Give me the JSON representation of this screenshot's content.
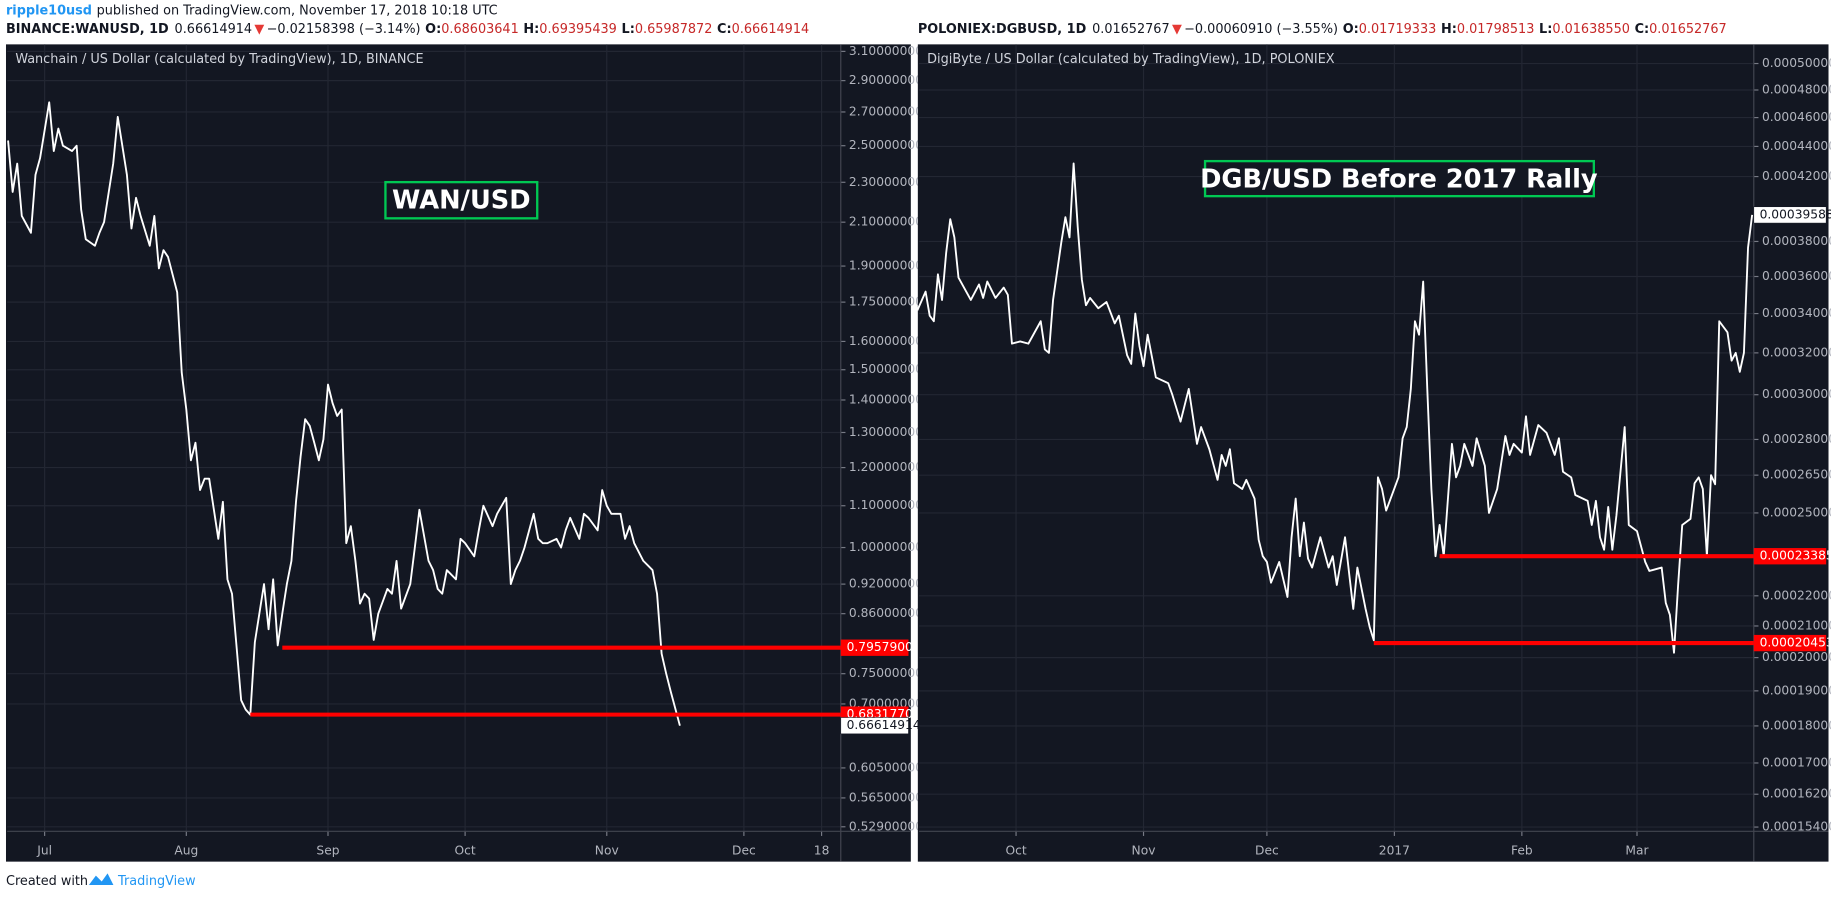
{
  "author": "ripple10usd",
  "published": "published on TradingView.com, November 17, 2018 10:18 UTC",
  "footer": {
    "created": "Created with",
    "brand": "TradingView"
  },
  "chart_data": [
    {
      "type": "line",
      "title": "Wanchain / US Dollar (calculated by TradingView), 1D, BINANCE",
      "annotation": "WAN/USD",
      "header": {
        "symbol": "BINANCE:WANUSD, 1D",
        "price": "0.66614914",
        "arrow": "▼",
        "change": "−0.02158398 (−3.14%)",
        "ohlc": [
          {
            "label": "O:",
            "value": "0.68603641"
          },
          {
            "label": "H:",
            "value": "0.69395439"
          },
          {
            "label": "L:",
            "value": "0.65987872"
          },
          {
            "label": "C:",
            "value": "0.66614914"
          }
        ]
      },
      "log_scale": true,
      "grid": true,
      "color": "#ffffff",
      "xlim": [
        -8.2,
        174.2
      ],
      "xticks": [
        {
          "value": 0,
          "label": "Jul"
        },
        {
          "value": 31,
          "label": "Aug"
        },
        {
          "value": 62,
          "label": "Sep"
        },
        {
          "value": 92,
          "label": "Oct"
        },
        {
          "value": 123,
          "label": "Nov"
        },
        {
          "value": 153,
          "label": "Dec"
        },
        {
          "value": 170,
          "label": "18"
        }
      ],
      "ylim": [
        0.5236,
        3.15
      ],
      "yticks": [
        {
          "value": 3.1,
          "label": "3.10000000"
        },
        {
          "value": 2.9,
          "label": "2.90000000"
        },
        {
          "value": 2.7,
          "label": "2.70000000"
        },
        {
          "value": 2.5,
          "label": "2.50000000"
        },
        {
          "value": 2.3,
          "label": "2.30000000"
        },
        {
          "value": 2.1,
          "label": "2.10000000"
        },
        {
          "value": 1.9,
          "label": "1.90000000"
        },
        {
          "value": 1.75,
          "label": "1.75000000"
        },
        {
          "value": 1.6,
          "label": "1.60000000"
        },
        {
          "value": 1.5,
          "label": "1.50000000"
        },
        {
          "value": 1.4,
          "label": "1.40000000"
        },
        {
          "value": 1.3,
          "label": "1.30000000"
        },
        {
          "value": 1.2,
          "label": "1.20000000"
        },
        {
          "value": 1.1,
          "label": "1.10000000"
        },
        {
          "value": 1.0,
          "label": "1.00000000"
        },
        {
          "value": 0.92,
          "label": "0.92000000"
        },
        {
          "value": 0.86,
          "label": "0.86000000"
        },
        {
          "value": 0.75,
          "label": "0.75000000"
        },
        {
          "value": 0.7,
          "label": "0.70000000"
        },
        {
          "value": 0.605,
          "label": "0.60500000"
        },
        {
          "value": 0.565,
          "label": "0.56500000"
        },
        {
          "value": 0.529,
          "label": "0.52900000"
        }
      ],
      "hlines": [
        {
          "value": 0.79579003,
          "x": 52,
          "color": "#ff0000"
        },
        {
          "value": 0.68317709,
          "x": 45,
          "color": "#ff0000"
        }
      ],
      "x": [
        -8,
        -7,
        -6,
        -5,
        -3,
        -2,
        -1,
        1,
        2,
        3,
        4,
        6,
        7,
        8,
        9,
        11,
        12,
        13,
        15,
        16,
        17,
        18,
        19,
        20,
        21,
        23,
        24,
        25,
        26,
        27,
        29,
        30,
        31,
        32,
        33,
        34,
        35,
        36,
        38,
        39,
        40,
        41,
        43,
        44,
        45,
        46,
        48,
        49,
        50,
        51,
        52,
        53,
        54,
        55,
        56,
        57,
        58,
        59,
        60,
        61,
        62,
        63,
        64,
        65,
        66,
        67,
        68,
        69,
        70,
        71,
        72,
        73,
        75,
        76,
        77,
        78,
        80,
        81,
        82,
        84,
        85,
        86,
        87,
        88,
        90,
        91,
        92,
        94,
        95,
        96,
        98,
        99,
        101,
        102,
        103,
        104,
        105,
        107,
        108,
        109,
        110,
        112,
        113,
        114,
        115,
        117,
        118,
        119,
        121,
        122,
        123,
        124,
        126,
        127,
        128,
        129,
        131,
        132,
        133,
        134,
        135,
        136,
        137,
        139
      ],
      "values": [
        2.53,
        2.25,
        2.4,
        2.13,
        2.05,
        2.34,
        2.43,
        2.76,
        2.47,
        2.6,
        2.5,
        2.47,
        2.5,
        2.16,
        2.02,
        1.99,
        2.05,
        2.1,
        2.4,
        2.67,
        2.5,
        2.34,
        2.07,
        2.22,
        2.13,
        1.99,
        2.13,
        1.89,
        1.97,
        1.94,
        1.79,
        1.49,
        1.37,
        1.22,
        1.27,
        1.14,
        1.17,
        1.17,
        1.02,
        1.11,
        0.93,
        0.9,
        0.706,
        0.691,
        0.683,
        0.806,
        0.92,
        0.83,
        0.93,
        0.8,
        0.86,
        0.92,
        0.97,
        1.11,
        1.23,
        1.34,
        1.32,
        1.27,
        1.22,
        1.28,
        1.45,
        1.39,
        1.35,
        1.37,
        1.01,
        1.05,
        0.97,
        0.88,
        0.9,
        0.89,
        0.81,
        0.86,
        0.91,
        0.9,
        0.97,
        0.87,
        0.92,
        1.0,
        1.09,
        0.97,
        0.95,
        0.91,
        0.9,
        0.95,
        0.93,
        1.02,
        1.01,
        0.98,
        1.04,
        1.1,
        1.05,
        1.08,
        1.12,
        0.92,
        0.95,
        0.97,
        1.0,
        1.08,
        1.02,
        1.01,
        1.01,
        1.02,
        1.0,
        1.04,
        1.07,
        1.02,
        1.08,
        1.07,
        1.04,
        1.14,
        1.1,
        1.08,
        1.08,
        1.02,
        1.05,
        1.01,
        0.97,
        0.96,
        0.95,
        0.9,
        0.785,
        0.75,
        0.72,
        0.66614914
      ]
    },
    {
      "type": "line",
      "title": "DigiByte / US Dollar (calculated by TradingView), 1D, POLONIEX",
      "annotation": "DGB/USD Before 2017 Rally",
      "header": {
        "symbol": "POLONIEX:DGBUSD, 1D",
        "price": "0.01652767",
        "arrow": "▼",
        "change": "−0.00060910 (−3.55%)",
        "ohlc": [
          {
            "label": "O:",
            "value": "0.01719333"
          },
          {
            "label": "H:",
            "value": "0.01798513"
          },
          {
            "label": "L:",
            "value": "0.01638550"
          },
          {
            "label": "C:",
            "value": "0.01652767"
          }
        ]
      },
      "log_scale": true,
      "grid": true,
      "color": "#ffffff",
      "xlim": [
        -23.6,
        179.4
      ],
      "xticks": [
        {
          "value": 0,
          "label": "Oct"
        },
        {
          "value": 31,
          "label": "Nov"
        },
        {
          "value": 61,
          "label": "Dec"
        },
        {
          "value": 92,
          "label": "2017"
        },
        {
          "value": 123,
          "label": "Feb"
        },
        {
          "value": 151,
          "label": "Mar"
        }
      ],
      "ylim": [
        0.000153,
        0.000515
      ],
      "yticks": [
        {
          "value": 0.0005,
          "label": "0.00050000"
        },
        {
          "value": 0.00048,
          "label": "0.00048000"
        },
        {
          "value": 0.00046,
          "label": "0.00046000"
        },
        {
          "value": 0.00044,
          "label": "0.00044000"
        },
        {
          "value": 0.00042,
          "label": "0.00042000"
        },
        {
          "value": 0.00038,
          "label": "0.00038000"
        },
        {
          "value": 0.00036,
          "label": "0.00036000"
        },
        {
          "value": 0.00034,
          "label": "0.00034000"
        },
        {
          "value": 0.00032,
          "label": "0.00032000"
        },
        {
          "value": 0.0003,
          "label": "0.00030000"
        },
        {
          "value": 0.00028,
          "label": "0.00028000"
        },
        {
          "value": 0.000265,
          "label": "0.00026500"
        },
        {
          "value": 0.00025,
          "label": "0.00025000"
        },
        {
          "value": 0.00022,
          "label": "0.00022000"
        },
        {
          "value": 0.00021,
          "label": "0.00021000"
        },
        {
          "value": 0.0002,
          "label": "0.00020000"
        },
        {
          "value": 0.00019,
          "label": "0.00019000"
        },
        {
          "value": 0.00018,
          "label": "0.00018000"
        },
        {
          "value": 0.00017,
          "label": "0.00017000"
        },
        {
          "value": 0.000162,
          "label": "0.00016200"
        },
        {
          "value": 0.000154,
          "label": "0.00015400"
        }
      ],
      "hlines": [
        {
          "value": 0.00023385,
          "x": 103,
          "color": "#ff0000"
        },
        {
          "value": 0.00020453,
          "x": 87,
          "color": "#ff0000"
        }
      ],
      "x": [
        -24,
        -22,
        -21,
        -20,
        -19,
        -18,
        -17,
        -16,
        -15,
        -14,
        -11,
        -9,
        -8,
        -7,
        -5,
        -3,
        -2,
        -1,
        1,
        3,
        6,
        7,
        8,
        9,
        11,
        12,
        13,
        14,
        15,
        16,
        17,
        18,
        20,
        22,
        24,
        25,
        27,
        28,
        29,
        30,
        31,
        32,
        34,
        37,
        38,
        40,
        42,
        44,
        45,
        47,
        49,
        50,
        51,
        52,
        53,
        55,
        56,
        58,
        59,
        60,
        61,
        62,
        64,
        66,
        67,
        68,
        69,
        70,
        71,
        72,
        74,
        76,
        77,
        78,
        80,
        81,
        82,
        83,
        85,
        86,
        87,
        88,
        89,
        90,
        93,
        94,
        95,
        96,
        97,
        98,
        99,
        100,
        101,
        102,
        103,
        104,
        106,
        107,
        108,
        109,
        111,
        112,
        114,
        115,
        117,
        119,
        120,
        121,
        123,
        124,
        125,
        127,
        129,
        131,
        132,
        133,
        135,
        136,
        139,
        140,
        141,
        142,
        143,
        144,
        145,
        146,
        148,
        149,
        151,
        153,
        154,
        157,
        158,
        159,
        160,
        161,
        162,
        164,
        165,
        166,
        167,
        168,
        169,
        170,
        171,
        173,
        174,
        175,
        176,
        177,
        178,
        179
      ],
      "values": [
        0.0003417,
        0.0003517,
        0.0003389,
        0.000336,
        0.0003612,
        0.0003472,
        0.0003733,
        0.0003933,
        0.0003824,
        0.0003594,
        0.0003472,
        0.0003556,
        0.0003483,
        0.0003572,
        0.0003483,
        0.0003539,
        0.00035,
        0.0003246,
        0.0003257,
        0.0003246,
        0.000336,
        0.0003217,
        0.00032,
        0.0003472,
        0.0003794,
        0.0003945,
        0.0003824,
        0.0004286,
        0.0003885,
        0.0003583,
        0.0003444,
        0.0003483,
        0.0003428,
        0.0003461,
        0.0003349,
        0.0003389,
        0.0003189,
        0.0003146,
        0.00034,
        0.0003234,
        0.0003135,
        0.0003291,
        0.0003081,
        0.0003054,
        0.0003,
        0.0002878,
        0.0003027,
        0.0002781,
        0.0002854,
        0.0002758,
        0.0002631,
        0.0002734,
        0.0002688,
        0.0002758,
        0.0002617,
        0.0002594,
        0.0002631,
        0.0002556,
        0.00023985,
        0.00023385,
        0.0002318,
        0.0002245,
        0.0002318,
        0.0002196,
        0.0002408,
        0.0002556,
        0.00023385,
        0.0002463,
        0.000233,
        0.0002298,
        0.0002408,
        0.0002298,
        0.00023385,
        0.0002237,
        0.0002408,
        0.0002277,
        0.0002156,
        0.0002298,
        0.0002156,
        0.0002096,
        0.0002054,
        0.0002641,
        0.0002594,
        0.0002509,
        0.0002641,
        0.0002805,
        0.0002854,
        0.0003027,
        0.000336,
        0.0003291,
        0.0003572,
        0.0003027,
        0.0002594,
        0.00023385,
        0.0002454,
        0.00023385,
        0.0002781,
        0.0002641,
        0.0002688,
        0.0002781,
        0.0002688,
        0.0002805,
        0.0002688,
        0.00025,
        0.0002594,
        0.0002815,
        0.0002734,
        0.0002781,
        0.0002744,
        0.0002902,
        0.0002734,
        0.0002863,
        0.0002829,
        0.0002734,
        0.0002805,
        0.0002664,
        0.0002641,
        0.000257,
        0.0002547,
        0.0002454,
        0.0002547,
        0.0002408,
        0.0002362,
        0.0002523,
        0.0002362,
        0.0002491,
        0.0002854,
        0.0002454,
        0.0002431,
        0.0002318,
        0.0002286,
        0.0002298,
        0.0002176,
        0.0002136,
        0.0002015,
        0.0002237,
        0.0002454,
        0.0002477,
        0.0002617,
        0.0002641,
        0.0002594,
        0.00023385,
        0.000265,
        0.0002613,
        0.000336,
        0.0003303,
        0.0003162,
        0.00032,
        0.0003108,
        0.00032,
        0.0003764,
        0.00039588
      ]
    }
  ]
}
